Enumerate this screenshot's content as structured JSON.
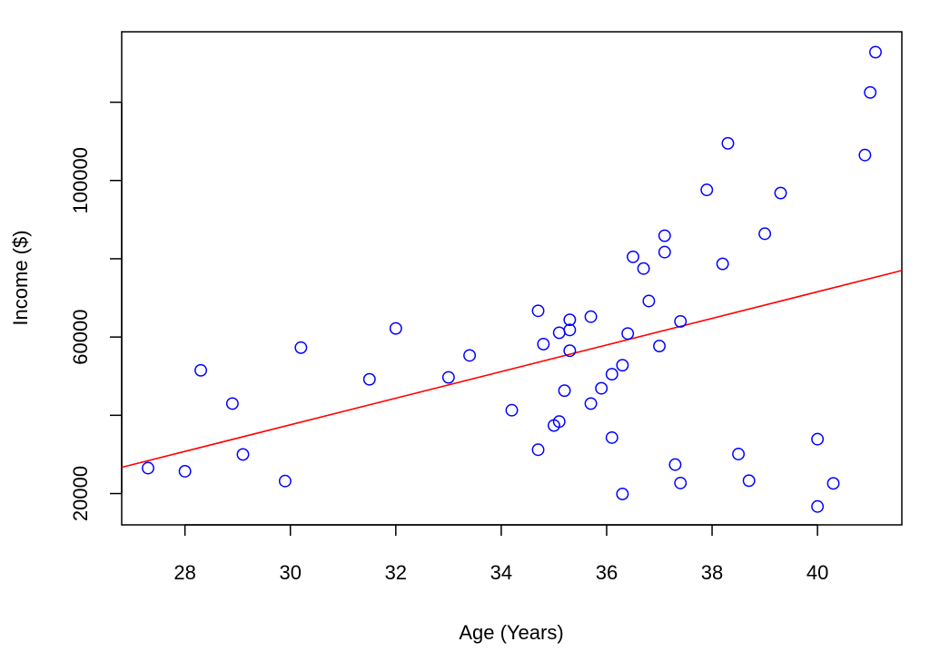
{
  "chart_data": {
    "type": "scatter",
    "xlabel": "Age (Years)",
    "ylabel": "Income ($)",
    "title": "",
    "xlim": [
      26.8,
      41.6
    ],
    "ylim": [
      12000,
      138000
    ],
    "x_ticks": [
      28,
      30,
      32,
      34,
      36,
      38,
      40
    ],
    "y_ticks": [
      20000,
      60000,
      100000
    ],
    "y_minor_ticks": [
      40000,
      80000,
      120000
    ],
    "grid": false,
    "legend": "none",
    "colors": {
      "points": "#0000ff",
      "fit_line": "#ff0000",
      "axes": "#000000"
    },
    "series": [
      {
        "marker": "open-circle",
        "x": [
          27.3,
          28.0,
          28.3,
          28.9,
          29.1,
          29.9,
          30.2,
          31.5,
          32.0,
          33.0,
          33.4,
          34.2,
          34.7,
          34.7,
          34.8,
          35.0,
          35.1,
          35.1,
          35.2,
          35.3,
          35.3,
          35.3,
          35.7,
          35.7,
          35.9,
          36.1,
          36.1,
          36.3,
          36.3,
          36.4,
          36.5,
          36.7,
          36.8,
          37.0,
          37.1,
          37.1,
          37.3,
          37.4,
          37.4,
          37.9,
          38.2,
          38.3,
          38.5,
          38.7,
          39.0,
          39.3,
          40.0,
          40.0,
          40.3,
          40.9,
          41.0,
          41.1
        ],
        "y": [
          26500,
          25700,
          51500,
          43000,
          30000,
          23200,
          57300,
          49200,
          62200,
          49700,
          55300,
          41300,
          66700,
          31200,
          58200,
          37400,
          61100,
          38400,
          46300,
          64400,
          61800,
          56500,
          65200,
          43000,
          46900,
          50500,
          34300,
          52800,
          19900,
          60900,
          80500,
          77500,
          69200,
          57700,
          85900,
          81700,
          27400,
          22700,
          64000,
          97600,
          78700,
          109500,
          30100,
          23300,
          86400,
          96800,
          33900,
          16700,
          22600,
          106500,
          122500,
          132800
        ]
      }
    ],
    "fit_line": {
      "color": "#ff0000",
      "x": [
        26.8,
        41.6
      ],
      "y": [
        26700,
        77000
      ]
    }
  }
}
